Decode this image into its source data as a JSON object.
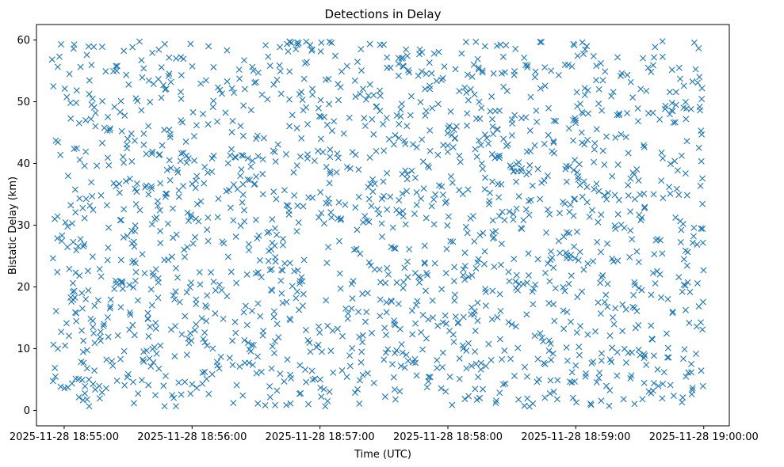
{
  "chart_data": {
    "type": "scatter",
    "title": "Detections in Delay",
    "xlabel": "Time (UTC)",
    "ylabel": "Bistatic Delay (km)",
    "marker": "x",
    "color": "#1f77b4",
    "grid": false,
    "x_ticks": [
      "2025-11-28 18:55:00",
      "2025-11-28 18:56:00",
      "2025-11-28 18:57:00",
      "2025-11-28 18:58:00",
      "2025-11-28 18:59:00",
      "2025-11-28 19:00:00"
    ],
    "y_ticks": [
      0,
      10,
      20,
      30,
      40,
      50,
      60
    ],
    "xlim": [
      "2025-11-28 18:54:47",
      "2025-11-28 19:00:12"
    ],
    "ylim": [
      -2.5,
      62.5
    ],
    "x_start": "2025-11-28 18:54:54",
    "x_end": "2025-11-28 19:00:00",
    "point_count": 1750,
    "y_min": 0.5,
    "y_max": 59.8
  }
}
